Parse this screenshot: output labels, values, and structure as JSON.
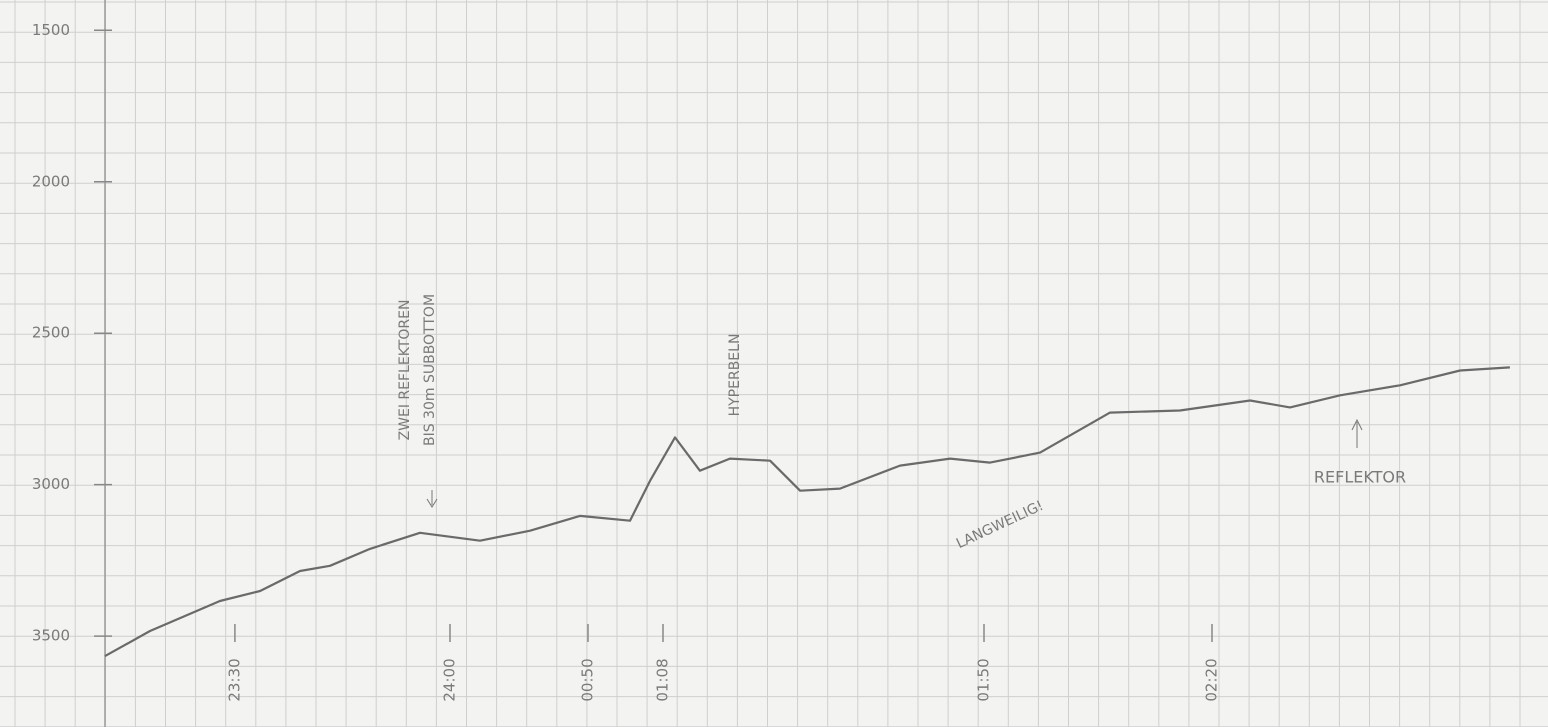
{
  "chart_data": {
    "type": "line",
    "series": [
      {
        "color": "#6a6a6a",
        "x": [
          0,
          1.5,
          3.83,
          5.17,
          6.5,
          7.5,
          8.83,
          10.5,
          12.5,
          14.17,
          15.83,
          17.5,
          18.17,
          19,
          19.83,
          20.83,
          22.17,
          23.17,
          24.5,
          26.5,
          28.17,
          29.5,
          31.17,
          33.5,
          35.83,
          38.17,
          39.5,
          41.17,
          43.17,
          45.17,
          46.83
        ],
        "values": [
          3566,
          3483,
          3384,
          3351,
          3285,
          3268,
          3212,
          3159,
          3185,
          3152,
          3103,
          3119,
          2987,
          2844,
          2954,
          2914,
          2921,
          3020,
          3013,
          2937,
          2914,
          2927,
          2894,
          2762,
          2755,
          2722,
          2745,
          2705,
          2672,
          2623,
          2613
        ]
      }
    ],
    "ylim": [
      1400,
      3800
    ],
    "yticks": [
      1500,
      2000,
      2500,
      3000,
      3500
    ],
    "xlim": [
      -3.5,
      48.1
    ],
    "xticks": [
      {
        "value": 4.33,
        "label": "23:30"
      },
      {
        "value": 11.5,
        "label": "24:00"
      },
      {
        "value": 16.1,
        "label": "00:50"
      },
      {
        "value": 18.6,
        "label": "01:08"
      },
      {
        "value": 29.3,
        "label": "01:50"
      },
      {
        "value": 36.9,
        "label": "02:20"
      }
    ],
    "annotations": [
      "ZWEI REFLEKTOREN",
      "BIS 30m SUBBOTTOM",
      "HYPERBELN",
      "LANGWEILIG!",
      "REFLEKTOR"
    ],
    "grid": true
  }
}
